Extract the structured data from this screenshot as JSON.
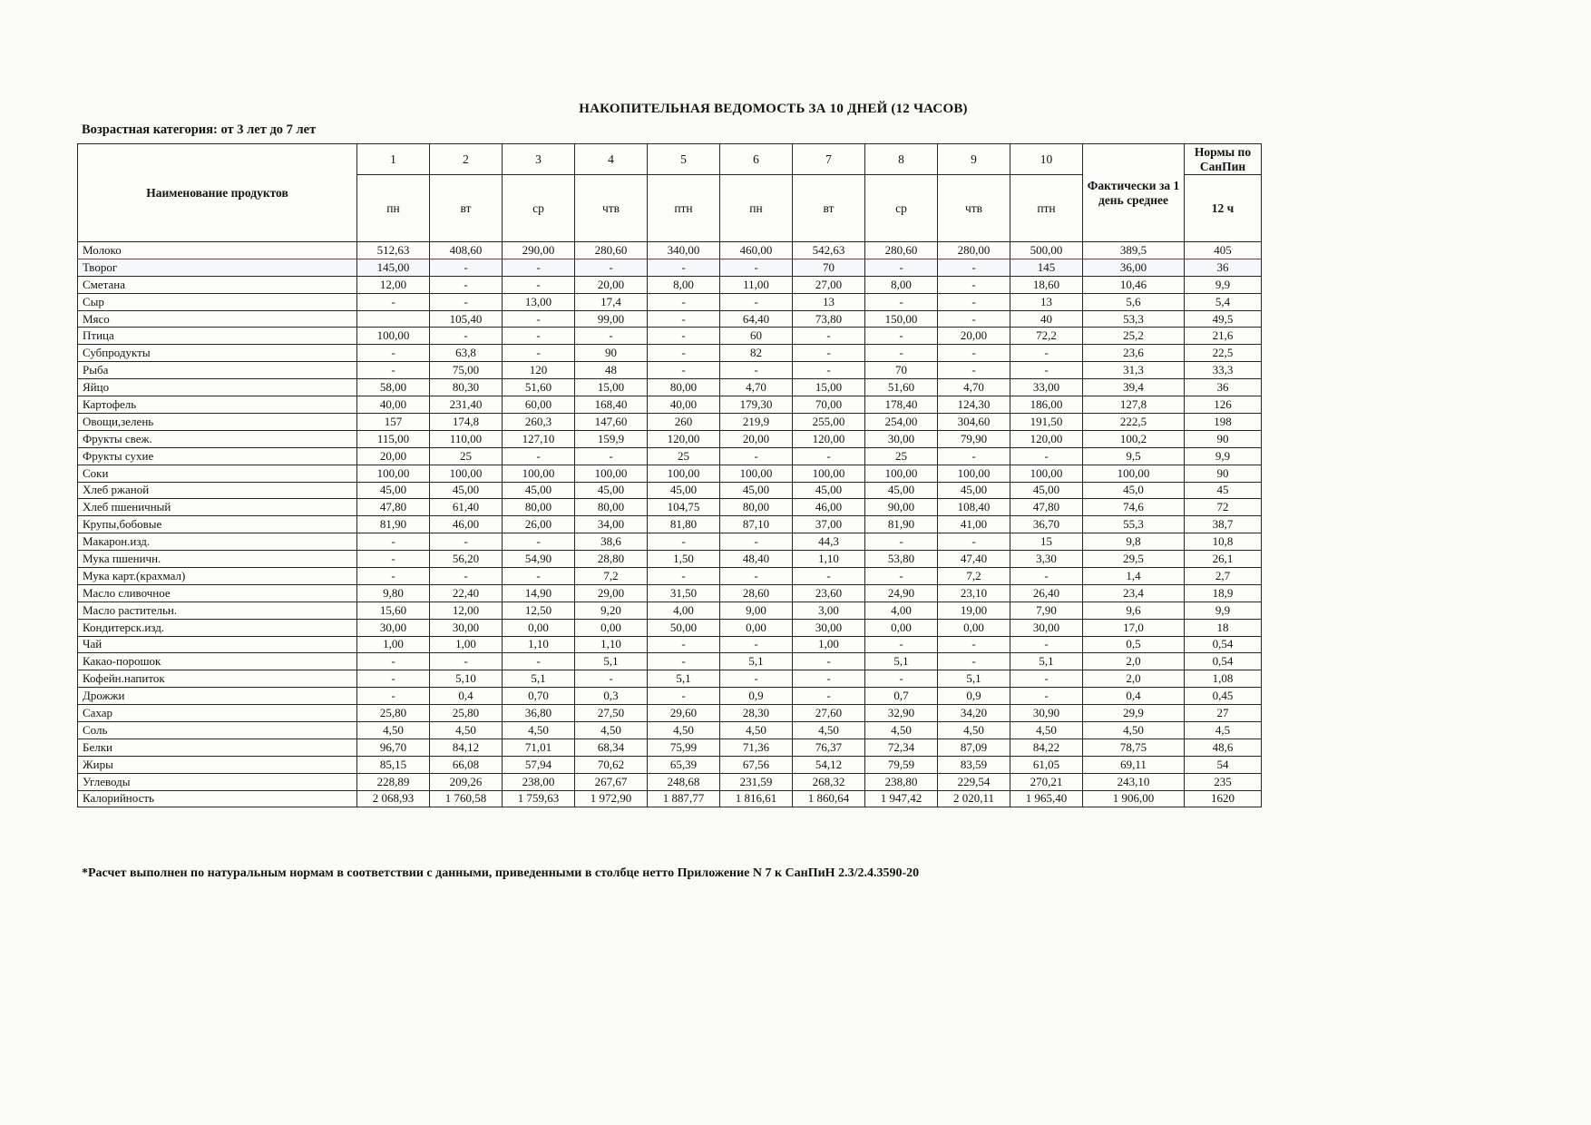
{
  "page": {
    "title": "НАКОПИТЕЛЬНАЯ ВЕДОМОСТЬ ЗА 10 ДНЕЙ (12 ЧАСОВ)",
    "age_category": "Возрастная категория: от 3 лет до 7 лет",
    "footnote": "*Расчет выполнен по натуральным нормам в соответствии с данными, приведенными в столбце нетто Приложение N 7 к СанПиН 2.3/2.4.3590-20"
  },
  "table": {
    "product_header": "Наименование продуктов",
    "avg_header": "Фактически за 1 день среднее",
    "norm_header": "Нормы по СанПин",
    "norm_subheader": "12 ч",
    "day_numbers": [
      "1",
      "2",
      "3",
      "4",
      "5",
      "6",
      "7",
      "8",
      "9",
      "10"
    ],
    "day_names": [
      "пн",
      "вт",
      "ср",
      "чтв",
      "птн",
      "пн",
      "вт",
      "ср",
      "чтв",
      "птн"
    ],
    "rows": [
      {
        "name": "Молоко",
        "values": [
          "512,63",
          "408,60",
          "290,00",
          "280,60",
          "340,00",
          "460,00",
          "542,63",
          "280,60",
          "280,00",
          "500,00"
        ],
        "avg": "389,5",
        "norm": "405"
      },
      {
        "name": "Творог",
        "values": [
          "145,00",
          "-",
          "-",
          "-",
          "-",
          "-",
          "70",
          "-",
          "-",
          "145"
        ],
        "avg": "36,00",
        "norm": "36"
      },
      {
        "name": "Сметана",
        "values": [
          "12,00",
          "-",
          "-",
          "20,00",
          "8,00",
          "11,00",
          "27,00",
          "8,00",
          "-",
          "18,60"
        ],
        "avg": "10,46",
        "norm": "9,9"
      },
      {
        "name": "Сыр",
        "values": [
          "-",
          "-",
          "13,00",
          "17,4",
          "-",
          "-",
          "13",
          "-",
          "-",
          "13"
        ],
        "avg": "5,6",
        "norm": "5,4"
      },
      {
        "name": "Мясо",
        "values": [
          "",
          "105,40",
          "-",
          "99,00",
          "-",
          "64,40",
          "73,80",
          "150,00",
          "-",
          "40"
        ],
        "avg": "53,3",
        "norm": "49,5"
      },
      {
        "name": "Птица",
        "values": [
          "100,00",
          "-",
          "-",
          "-",
          "-",
          "60",
          "-",
          "-",
          "20,00",
          "72,2"
        ],
        "avg": "25,2",
        "norm": "21,6"
      },
      {
        "name": "Субпродукты",
        "values": [
          "-",
          "63,8",
          "-",
          "90",
          "-",
          "82",
          "-",
          "-",
          "-",
          "-"
        ],
        "avg": "23,6",
        "norm": "22,5"
      },
      {
        "name": "Рыба",
        "values": [
          "-",
          "75,00",
          "120",
          "48",
          "-",
          "-",
          "-",
          "70",
          "-",
          "-"
        ],
        "avg": "31,3",
        "norm": "33,3"
      },
      {
        "name": "Яйцо",
        "values": [
          "58,00",
          "80,30",
          "51,60",
          "15,00",
          "80,00",
          "4,70",
          "15,00",
          "51,60",
          "4,70",
          "33,00"
        ],
        "avg": "39,4",
        "norm": "36"
      },
      {
        "name": "Картофель",
        "values": [
          "40,00",
          "231,40",
          "60,00",
          "168,40",
          "40,00",
          "179,30",
          "70,00",
          "178,40",
          "124,30",
          "186,00"
        ],
        "avg": "127,8",
        "norm": "126"
      },
      {
        "name": "Овощи,зелень",
        "values": [
          "157",
          "174,8",
          "260,3",
          "147,60",
          "260",
          "219,9",
          "255,00",
          "254,00",
          "304,60",
          "191,50"
        ],
        "avg": "222,5",
        "norm": "198"
      },
      {
        "name": "Фрукты свеж.",
        "values": [
          "115,00",
          "110,00",
          "127,10",
          "159,9",
          "120,00",
          "20,00",
          "120,00",
          "30,00",
          "79,90",
          "120,00"
        ],
        "avg": "100,2",
        "norm": "90"
      },
      {
        "name": "Фрукты сухие",
        "values": [
          "20,00",
          "25",
          "-",
          "-",
          "25",
          "-",
          "-",
          "25",
          "-",
          "-"
        ],
        "avg": "9,5",
        "norm": "9,9"
      },
      {
        "name": "Соки",
        "values": [
          "100,00",
          "100,00",
          "100,00",
          "100,00",
          "100,00",
          "100,00",
          "100,00",
          "100,00",
          "100,00",
          "100,00"
        ],
        "avg": "100,00",
        "norm": "90"
      },
      {
        "name": "Хлеб ржаной",
        "values": [
          "45,00",
          "45,00",
          "45,00",
          "45,00",
          "45,00",
          "45,00",
          "45,00",
          "45,00",
          "45,00",
          "45,00"
        ],
        "avg": "45,0",
        "norm": "45"
      },
      {
        "name": "Хлеб пшеничный",
        "values": [
          "47,80",
          "61,40",
          "80,00",
          "80,00",
          "104,75",
          "80,00",
          "46,00",
          "90,00",
          "108,40",
          "47,80"
        ],
        "avg": "74,6",
        "norm": "72"
      },
      {
        "name": "Крупы,бобовые",
        "values": [
          "81,90",
          "46,00",
          "26,00",
          "34,00",
          "81,80",
          "87,10",
          "37,00",
          "81,90",
          "41,00",
          "36,70"
        ],
        "avg": "55,3",
        "norm": "38,7"
      },
      {
        "name": "Макарон.изд.",
        "values": [
          "-",
          "-",
          "-",
          "38,6",
          "-",
          "-",
          "44,3",
          "-",
          "-",
          "15"
        ],
        "avg": "9,8",
        "norm": "10,8"
      },
      {
        "name": "Мука пшеничн.",
        "values": [
          "-",
          "56,20",
          "54,90",
          "28,80",
          "1,50",
          "48,40",
          "1,10",
          "53,80",
          "47,40",
          "3,30"
        ],
        "avg": "29,5",
        "norm": "26,1"
      },
      {
        "name": "Мука карт.(крахмал)",
        "values": [
          "-",
          "-",
          "-",
          "7,2",
          "-",
          "-",
          "-",
          "-",
          "7,2",
          "-"
        ],
        "avg": "1,4",
        "norm": "2,7"
      },
      {
        "name": "Масло сливочное",
        "values": [
          "9,80",
          "22,40",
          "14,90",
          "29,00",
          "31,50",
          "28,60",
          "23,60",
          "24,90",
          "23,10",
          "26,40"
        ],
        "avg": "23,4",
        "norm": "18,9"
      },
      {
        "name": "Масло растительн.",
        "values": [
          "15,60",
          "12,00",
          "12,50",
          "9,20",
          "4,00",
          "9,00",
          "3,00",
          "4,00",
          "19,00",
          "7,90"
        ],
        "avg": "9,6",
        "norm": "9,9"
      },
      {
        "name": "Кондитерск.изд.",
        "values": [
          "30,00",
          "30,00",
          "0,00",
          "0,00",
          "50,00",
          "0,00",
          "30,00",
          "0,00",
          "0,00",
          "30,00"
        ],
        "avg": "17,0",
        "norm": "18"
      },
      {
        "name": "Чай",
        "values": [
          "1,00",
          "1,00",
          "1,10",
          "1,10",
          "-",
          "-",
          "1,00",
          "-",
          "-",
          "-"
        ],
        "avg": "0,5",
        "norm": "0,54"
      },
      {
        "name": "Какао-порошок",
        "values": [
          "-",
          "-",
          "-",
          "5,1",
          "-",
          "5,1",
          "-",
          "5,1",
          "-",
          "5,1"
        ],
        "avg": "2,0",
        "norm": "0,54"
      },
      {
        "name": "Кофейн.напиток",
        "values": [
          "-",
          "5,10",
          "5,1",
          "-",
          "5,1",
          "-",
          "-",
          "-",
          "5,1",
          "-"
        ],
        "avg": "2,0",
        "norm": "1,08"
      },
      {
        "name": "Дрожжи",
        "values": [
          "-",
          "0,4",
          "0,70",
          "0,3",
          "-",
          "0,9",
          "-",
          "0,7",
          "0,9",
          "-"
        ],
        "avg": "0,4",
        "norm": "0,45"
      },
      {
        "name": "Сахар",
        "values": [
          "25,80",
          "25,80",
          "36,80",
          "27,50",
          "29,60",
          "28,30",
          "27,60",
          "32,90",
          "34,20",
          "30,90"
        ],
        "avg": "29,9",
        "norm": "27"
      },
      {
        "name": "Соль",
        "values": [
          "4,50",
          "4,50",
          "4,50",
          "4,50",
          "4,50",
          "4,50",
          "4,50",
          "4,50",
          "4,50",
          "4,50"
        ],
        "avg": "4,50",
        "norm": "4,5"
      },
      {
        "name": "Белки",
        "values": [
          "96,70",
          "84,12",
          "71,01",
          "68,34",
          "75,99",
          "71,36",
          "76,37",
          "72,34",
          "87,09",
          "84,22"
        ],
        "avg": "78,75",
        "norm": "48,6"
      },
      {
        "name": "Жиры",
        "values": [
          "85,15",
          "66,08",
          "57,94",
          "70,62",
          "65,39",
          "67,56",
          "54,12",
          "79,59",
          "83,59",
          "61,05"
        ],
        "avg": "69,11",
        "norm": "54"
      },
      {
        "name": "Углеводы",
        "values": [
          "228,89",
          "209,26",
          "238,00",
          "267,67",
          "248,68",
          "231,59",
          "268,32",
          "238,80",
          "229,54",
          "270,21"
        ],
        "avg": "243,10",
        "norm": "235"
      },
      {
        "name": "Калорийность",
        "values": [
          "2 068,93",
          "1 760,58",
          "1 759,63",
          "1 972,90",
          "1 887,77",
          "1 816,61",
          "1 860,64",
          "1 947,42",
          "2 020,11",
          "1 965,40"
        ],
        "avg": "1 906,00",
        "norm": "1620"
      }
    ]
  }
}
